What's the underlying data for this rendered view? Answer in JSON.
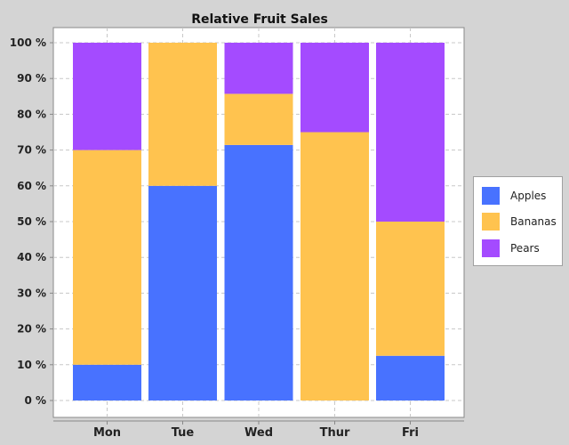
{
  "chart_data": {
    "type": "bar",
    "stacked": true,
    "normalized": true,
    "title": "Relative Fruit Sales",
    "xlabel": "",
    "ylabel": "",
    "categories": [
      "Mon",
      "Tue",
      "Wed",
      "Thur",
      "Fri"
    ],
    "series": [
      {
        "name": "Apples",
        "color": "#4872ff",
        "values": [
          10,
          60,
          71.43,
          0,
          12.5
        ]
      },
      {
        "name": "Bananas",
        "color": "#ffc34f",
        "values": [
          60,
          40,
          14.29,
          75,
          37.5
        ]
      },
      {
        "name": "Pears",
        "color": "#a44bff",
        "values": [
          30,
          0,
          14.29,
          25,
          50
        ]
      }
    ],
    "ylim": [
      0,
      100
    ],
    "yticks": [
      0,
      10,
      20,
      30,
      40,
      50,
      60,
      70,
      80,
      90,
      100
    ],
    "ytick_labels": [
      "0 %",
      "10 %",
      "20 %",
      "30 %",
      "40 %",
      "50 %",
      "60 %",
      "70 %",
      "80 %",
      "90 %",
      "100 %"
    ],
    "grid": true,
    "legend_position": "right"
  }
}
